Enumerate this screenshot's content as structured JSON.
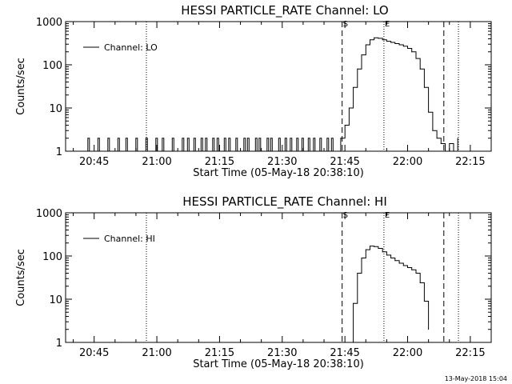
{
  "chart_data": [
    {
      "type": "line",
      "title": "HESSI PARTICLE_RATE Channel: LO",
      "xlabel": "Start Time (05-May-18 20:38:10)",
      "ylabel": "Counts/sec",
      "y_scale": "log",
      "ylim": [
        1,
        1000
      ],
      "y_ticks": [
        {
          "value": 1,
          "label": "1"
        },
        {
          "value": 10,
          "label": "10"
        },
        {
          "value": 100,
          "label": "100"
        },
        {
          "value": 1000,
          "label": "1000"
        }
      ],
      "xlim": [
        "20:38:10",
        "22:20:00"
      ],
      "x_ticks": [
        "20:45",
        "21:00",
        "21:15",
        "21:30",
        "21:45",
        "22:00",
        "22:15"
      ],
      "legend": {
        "placement": "top-left",
        "entries": [
          "Channel: LO"
        ]
      },
      "markers": [
        {
          "time": "20:57:30",
          "style": "dotted",
          "label": ""
        },
        {
          "time": "21:44:20",
          "style": "dashed",
          "label": "S"
        },
        {
          "time": "21:54:20",
          "style": "dotted",
          "label": "E"
        },
        {
          "time": "22:08:40",
          "style": "dashed",
          "label": ""
        },
        {
          "time": "22:12:10",
          "style": "dotted",
          "label": ""
        }
      ],
      "series": [
        {
          "name": "Channel: LO",
          "noise_floor": {
            "start": "20:43:00",
            "end": "21:43:00",
            "value": 1,
            "spike_value": 2
          },
          "x": [
            "21:43:00",
            "21:44:00",
            "21:45:00",
            "21:46:00",
            "21:47:00",
            "21:48:00",
            "21:49:00",
            "21:50:00",
            "21:51:00",
            "21:52:00",
            "21:53:00",
            "21:54:00",
            "21:55:00",
            "21:56:00",
            "21:57:00",
            "21:58:00",
            "21:59:00",
            "22:00:00",
            "22:01:00",
            "22:02:00",
            "22:03:00",
            "22:04:00",
            "22:05:00",
            "22:06:00",
            "22:07:00",
            "22:08:00",
            "22:09:00",
            "22:10:00",
            "22:11:00",
            "22:12:00"
          ],
          "y": [
            1,
            2,
            4,
            10,
            30,
            80,
            170,
            290,
            380,
            420,
            410,
            380,
            350,
            330,
            310,
            290,
            270,
            240,
            200,
            140,
            80,
            30,
            8,
            3,
            2,
            1.5,
            1,
            1.5,
            1,
            2
          ]
        }
      ]
    },
    {
      "type": "line",
      "title": "HESSI PARTICLE_RATE Channel: HI",
      "xlabel": "Start Time (05-May-18 20:38:10)",
      "ylabel": "Counts/sec",
      "y_scale": "log",
      "ylim": [
        1,
        1000
      ],
      "y_ticks": [
        {
          "value": 1,
          "label": "1"
        },
        {
          "value": 10,
          "label": "10"
        },
        {
          "value": 100,
          "label": "100"
        },
        {
          "value": 1000,
          "label": "1000"
        }
      ],
      "xlim": [
        "20:38:10",
        "22:20:00"
      ],
      "x_ticks": [
        "20:45",
        "21:00",
        "21:15",
        "21:30",
        "21:45",
        "22:00",
        "22:15"
      ],
      "legend": {
        "placement": "top-left",
        "entries": [
          "Channel: HI"
        ]
      },
      "markers": [
        {
          "time": "20:57:30",
          "style": "dotted",
          "label": ""
        },
        {
          "time": "21:44:20",
          "style": "dashed",
          "label": "S"
        },
        {
          "time": "21:54:20",
          "style": "dotted",
          "label": "E"
        },
        {
          "time": "22:08:40",
          "style": "dashed",
          "label": ""
        },
        {
          "time": "22:12:10",
          "style": "dotted",
          "label": ""
        }
      ],
      "series": [
        {
          "name": "Channel: HI",
          "x": [
            "21:46:00",
            "21:47:00",
            "21:48:00",
            "21:49:00",
            "21:50:00",
            "21:51:00",
            "21:52:00",
            "21:53:00",
            "21:54:00",
            "21:55:00",
            "21:56:00",
            "21:57:00",
            "21:58:00",
            "21:59:00",
            "22:00:00",
            "22:01:00",
            "22:02:00",
            "22:03:00",
            "22:04:00",
            "22:05:00"
          ],
          "y": [
            1,
            8,
            40,
            90,
            140,
            170,
            165,
            150,
            125,
            105,
            90,
            78,
            68,
            60,
            54,
            48,
            40,
            24,
            9,
            2
          ]
        }
      ]
    }
  ],
  "footer": {
    "timestamp": "13-May-2018 15:04"
  }
}
